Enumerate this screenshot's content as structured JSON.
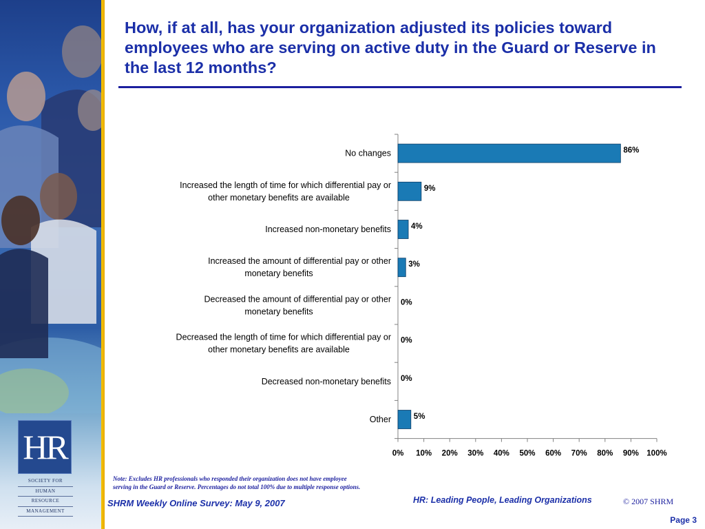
{
  "slide": {
    "title": "How, if at all, has your organization adjusted its policies toward employees who are serving on active duty in the Guard or Reserve in the last 12 months?",
    "note_line1": "Note: Excludes HR professionals who responded their organization does not have employee",
    "note_line2": "serving in the Guard or Reserve. Percentages do not total 100% due to multiple response options.",
    "survey": "SHRM Weekly Online Survey: May 9, 2007",
    "tagline": "HR: Leading People, Leading Organizations",
    "copyright": "© 2007 SHRM",
    "page": "Page 3"
  },
  "logo": {
    "letters": "HR",
    "line1": "SOCIETY FOR",
    "line2": "HUMAN",
    "line3": "RESOURCE",
    "line4": "MANAGEMENT"
  },
  "colors": {
    "bar": "#1a7ab5",
    "title": "#1b2fa8"
  },
  "chart_data": {
    "type": "bar",
    "orientation": "horizontal",
    "categories": [
      [
        "No changes"
      ],
      [
        "Increased the length of time for which differential pay or",
        "other monetary benefits are available"
      ],
      [
        "Increased non-monetary benefits"
      ],
      [
        "Increased the amount of differential pay or other",
        "monetary benefits"
      ],
      [
        "Decreased the amount of differential pay or other",
        "monetary benefits"
      ],
      [
        "Decreased the length of time for which differential pay or",
        "other monetary benefits are available"
      ],
      [
        "Decreased non-monetary benefits"
      ],
      [
        "Other"
      ]
    ],
    "values": [
      86,
      9,
      4,
      3,
      0,
      0,
      0,
      5
    ],
    "value_labels": [
      "86%",
      "9%",
      "4%",
      "3%",
      "0%",
      "0%",
      "0%",
      "5%"
    ],
    "xlim": [
      0,
      100
    ],
    "ticks": [
      "0%",
      "10%",
      "20%",
      "30%",
      "40%",
      "50%",
      "60%",
      "70%",
      "80%",
      "90%",
      "100%"
    ],
    "grid": false,
    "legend": "none"
  }
}
